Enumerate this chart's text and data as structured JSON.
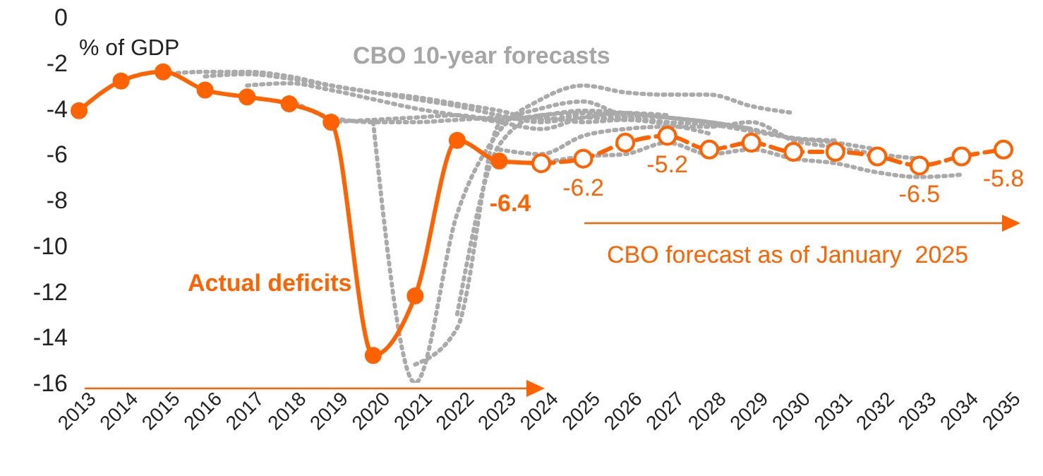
{
  "chart_data": {
    "type": "line",
    "ylabel": "% of GDP",
    "categories": [
      "2013",
      "2014",
      "2015",
      "2016",
      "2017",
      "2018",
      "2019",
      "2020",
      "2021",
      "2022",
      "2023",
      "2024",
      "2025",
      "2026",
      "2027",
      "2028",
      "2029",
      "2030",
      "2031",
      "2032",
      "2033",
      "2034",
      "2035"
    ],
    "ylim": [
      -16,
      0
    ],
    "yticks": [
      0,
      -2,
      -4,
      -6,
      -8,
      -10,
      -12,
      -14,
      -16
    ],
    "series": [
      {
        "color": "#aaaaaa",
        "line_style": "dotted",
        "marker": "none",
        "values": [
          null,
          null,
          -2.5,
          -2.4,
          -2.4,
          -2.6,
          -3.0,
          -3.3,
          -3.5,
          -3.8,
          -4.1,
          -4.5,
          -4.2,
          null,
          null,
          null,
          null,
          null,
          null,
          null,
          null,
          null,
          null
        ]
      },
      {
        "color": "#aaaaaa",
        "line_style": "dotted",
        "marker": "none",
        "values": [
          null,
          null,
          null,
          -2.6,
          -2.5,
          -2.7,
          -3.0,
          -3.3,
          -3.6,
          -3.9,
          -4.3,
          -4.6,
          -4.4,
          -4.5,
          null,
          null,
          null,
          null,
          null,
          null,
          null,
          null,
          null
        ]
      },
      {
        "color": "#aaaaaa",
        "line_style": "dotted",
        "marker": "none",
        "values": [
          null,
          null,
          null,
          null,
          -3.0,
          -2.9,
          -3.2,
          -3.6,
          -4.0,
          -4.3,
          -4.6,
          -4.9,
          -4.4,
          -4.2,
          -4.3,
          null,
          null,
          null,
          null,
          null,
          null,
          null,
          null
        ]
      },
      {
        "color": "#aaaaaa",
        "line_style": "dotted",
        "marker": "none",
        "values": [
          null,
          null,
          null,
          null,
          null,
          -3.6,
          -4.4,
          -4.6,
          -4.6,
          -4.5,
          -4.4,
          -4.4,
          -4.6,
          -4.5,
          -4.7,
          -5.1,
          null,
          null,
          null,
          null,
          null,
          null,
          null
        ]
      },
      {
        "color": "#aaaaaa",
        "line_style": "dotted",
        "marker": "none",
        "values": [
          null,
          null,
          null,
          null,
          null,
          null,
          -4.6,
          -4.5,
          -4.4,
          -4.3,
          -4.5,
          -4.3,
          -4.1,
          -4.2,
          -4.4,
          -4.6,
          -4.9,
          null,
          null,
          null,
          null,
          null,
          null
        ]
      },
      {
        "color": "#aaaaaa",
        "line_style": "dotted",
        "marker": "none",
        "values": [
          null,
          null,
          null,
          null,
          null,
          null,
          null,
          -4.6,
          -16.0,
          -8.6,
          -5.0,
          -3.6,
          -3.0,
          -3.3,
          -3.4,
          -3.4,
          -3.9,
          -4.2,
          null,
          null,
          null,
          null,
          null
        ]
      },
      {
        "color": "#aaaaaa",
        "line_style": "dotted",
        "marker": "none",
        "values": [
          null,
          null,
          null,
          null,
          null,
          null,
          null,
          null,
          -15.2,
          -13.6,
          -4.7,
          -4.0,
          -3.7,
          -4.3,
          -4.4,
          -4.6,
          -4.9,
          -5.3,
          -5.4,
          null,
          null,
          null,
          null
        ]
      },
      {
        "color": "#aaaaaa",
        "line_style": "dotted",
        "marker": "none",
        "values": [
          null,
          null,
          null,
          null,
          null,
          null,
          null,
          null,
          null,
          -13.0,
          -5.6,
          -4.3,
          -4.2,
          -4.4,
          -4.6,
          -4.7,
          -5.0,
          -5.3,
          -5.5,
          -5.8,
          null,
          null,
          null
        ]
      },
      {
        "color": "#aaaaaa",
        "line_style": "dotted",
        "marker": "none",
        "values": [
          null,
          null,
          null,
          null,
          null,
          null,
          null,
          null,
          null,
          null,
          -5.8,
          -6.0,
          -5.2,
          -4.9,
          -4.8,
          -4.8,
          -4.6,
          -5.4,
          -5.7,
          -6.0,
          -6.2,
          null,
          null
        ]
      },
      {
        "color": "#aaaaaa",
        "line_style": "dotted",
        "marker": "none",
        "values": [
          null,
          null,
          null,
          null,
          null,
          null,
          null,
          null,
          null,
          null,
          null,
          -6.4,
          -6.1,
          -6.0,
          -5.5,
          -6.0,
          -5.8,
          -6.2,
          -6.4,
          -6.8,
          -7.0,
          -6.9,
          null
        ]
      },
      {
        "color": "#ff6200",
        "line_style": "solid",
        "marker": "circle",
        "values": [
          -4.1,
          -2.8,
          -2.4,
          -3.2,
          -3.5,
          -3.8,
          -4.6,
          -14.8,
          -12.2,
          -5.4,
          -6.3,
          -6.4,
          null,
          null,
          null,
          null,
          null,
          null,
          null,
          null,
          null,
          null,
          null
        ],
        "value_labels": [
          null,
          null,
          null,
          null,
          null,
          null,
          null,
          null,
          null,
          null,
          null,
          "-6.4",
          null,
          null,
          null,
          null,
          null,
          null,
          null,
          null,
          null,
          null,
          null
        ]
      },
      {
        "color": "#ff6200",
        "line_style": "dashed",
        "marker": "circle",
        "values": [
          null,
          null,
          null,
          null,
          null,
          null,
          null,
          null,
          null,
          null,
          null,
          -6.4,
          -6.2,
          -5.5,
          -5.2,
          -5.8,
          -5.5,
          -5.9,
          -5.9,
          -6.1,
          -6.5,
          -6.1,
          -5.8
        ],
        "value_labels": [
          null,
          null,
          null,
          null,
          null,
          null,
          null,
          null,
          null,
          null,
          null,
          null,
          "-6.2",
          null,
          "-5.2",
          null,
          null,
          null,
          null,
          null,
          "-6.5",
          null,
          "-5.8"
        ]
      }
    ],
    "annotations": [
      "CBO 10-year forecasts",
      "Actual deficits",
      "CBO forecast as of January  2025"
    ],
    "legend": false,
    "grid": false
  }
}
